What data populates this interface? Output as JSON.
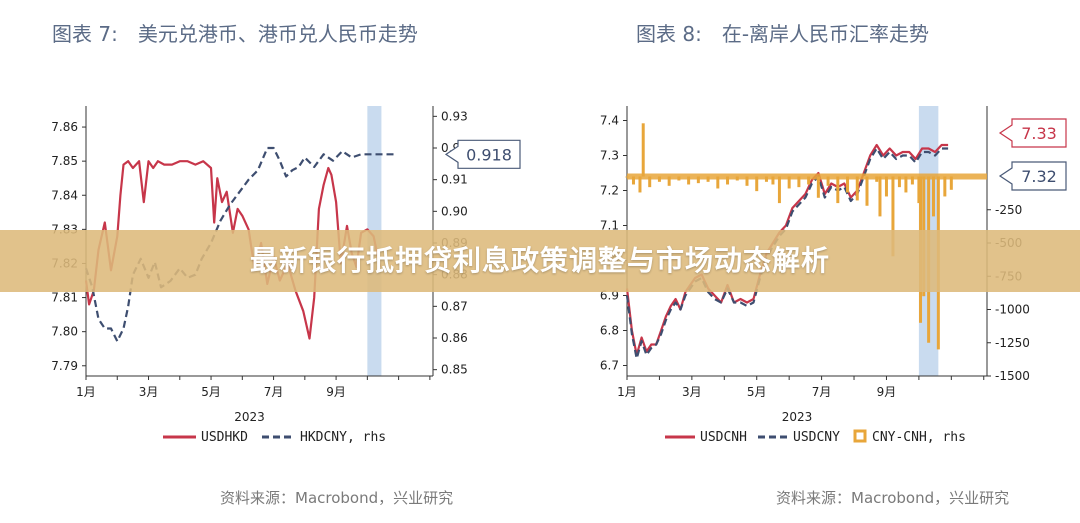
{
  "banner": {
    "text": "最新银行抵押贷利息政策调整与市场动态解析"
  },
  "colors": {
    "red": "#c7364a",
    "navy": "#3e4e70",
    "orange": "#e8a63a",
    "highlight": "#c9dbef"
  },
  "chart_data": [
    {
      "type": "line",
      "title": "图表 7:　美元兑港币、港币兑人民币走势",
      "source": "资料来源：Macrobond，兴业研究",
      "x_axis": {
        "ticks": [
          "1月",
          "3月",
          "5月",
          "7月",
          "9月"
        ],
        "year_label": "2023"
      },
      "y_left": {
        "ticks": [
          "7.79",
          "7.80",
          "7.81",
          "7.82",
          "7.83",
          "7.84",
          "7.85",
          "7.86"
        ],
        "range": [
          7.787,
          7.865
        ]
      },
      "y_right": {
        "ticks": [
          "0.85",
          "0.86",
          "0.87",
          "0.88",
          "0.89",
          "0.90",
          "0.91",
          "0.92",
          "0.93"
        ],
        "range": [
          0.848,
          0.932
        ]
      },
      "x_range": [
        1,
        12.1
      ],
      "highlight_span": [
        10,
        10.45
      ],
      "callouts": [
        {
          "text": "0.918",
          "axis": "right",
          "value": 0.918
        }
      ],
      "legend": [
        "USDHKD",
        "HKDCNY, rhs"
      ],
      "series": [
        {
          "name": "USDHKD",
          "axis": "left",
          "style": "solid",
          "x": [
            1.0,
            1.1,
            1.25,
            1.4,
            1.6,
            1.8,
            2.0,
            2.1,
            2.2,
            2.35,
            2.5,
            2.7,
            2.85,
            3.0,
            3.15,
            3.3,
            3.5,
            3.75,
            4.0,
            4.25,
            4.5,
            4.75,
            5.0,
            5.1,
            5.2,
            5.35,
            5.5,
            5.7,
            5.85,
            6.0,
            6.2,
            6.4,
            6.6,
            6.8,
            7.0,
            7.2,
            7.45,
            7.7,
            7.95,
            8.15,
            8.3,
            8.45,
            8.6,
            8.75,
            8.85,
            9.0,
            9.15,
            9.35,
            9.5,
            9.65,
            9.8,
            10.0,
            10.2,
            10.4
          ],
          "values": [
            7.815,
            7.808,
            7.812,
            7.824,
            7.832,
            7.818,
            7.828,
            7.84,
            7.849,
            7.85,
            7.848,
            7.85,
            7.838,
            7.85,
            7.848,
            7.85,
            7.849,
            7.849,
            7.85,
            7.85,
            7.849,
            7.85,
            7.848,
            7.832,
            7.845,
            7.838,
            7.841,
            7.829,
            7.836,
            7.834,
            7.83,
            7.818,
            7.826,
            7.814,
            7.822,
            7.815,
            7.82,
            7.812,
            7.806,
            7.798,
            7.81,
            7.836,
            7.843,
            7.848,
            7.846,
            7.838,
            7.82,
            7.831,
            7.823,
            7.819,
            7.829,
            7.83,
            7.828,
            7.819
          ]
        },
        {
          "name": "HKDCNY, rhs",
          "axis": "right",
          "style": "dashed",
          "x": [
            1.0,
            1.2,
            1.4,
            1.6,
            1.8,
            2.0,
            2.2,
            2.35,
            2.5,
            2.75,
            3.0,
            3.2,
            3.4,
            3.7,
            4.0,
            4.25,
            4.5,
            4.7,
            5.0,
            5.3,
            5.6,
            5.9,
            6.2,
            6.5,
            6.8,
            7.0,
            7.2,
            7.4,
            7.6,
            7.8,
            8.0,
            8.3,
            8.6,
            8.9,
            9.2,
            9.5,
            9.8,
            10.0,
            10.3,
            10.6,
            10.9
          ],
          "values": [
            0.882,
            0.876,
            0.866,
            0.863,
            0.863,
            0.859,
            0.863,
            0.87,
            0.88,
            0.885,
            0.879,
            0.884,
            0.876,
            0.878,
            0.882,
            0.879,
            0.88,
            0.885,
            0.89,
            0.897,
            0.902,
            0.906,
            0.91,
            0.913,
            0.92,
            0.92,
            0.916,
            0.911,
            0.913,
            0.914,
            0.917,
            0.914,
            0.918,
            0.916,
            0.919,
            0.917,
            0.918,
            0.918,
            0.918,
            0.918,
            0.918
          ]
        }
      ]
    },
    {
      "type": "line",
      "title": "图表 8:　在-离岸人民币汇率走势",
      "source": "资料来源：Macrobond，兴业研究",
      "x_axis": {
        "ticks": [
          "1月",
          "3月",
          "5月",
          "7月",
          "9月"
        ],
        "year_label": "2023"
      },
      "y_left": {
        "ticks": [
          "6.7",
          "6.8",
          "6.9",
          "7.0",
          "7.1",
          "7.2",
          "7.3",
          "7.4"
        ],
        "range": [
          6.67,
          7.43
        ]
      },
      "y_right": {
        "ticks": [
          "-1500",
          "-1250",
          "-1000",
          "-750",
          "-500",
          "-250"
        ],
        "range": [
          -1500,
          500
        ]
      },
      "x_range": [
        1,
        12.1
      ],
      "highlight_span": [
        10,
        10.6
      ],
      "callouts": [
        {
          "text": "7.33",
          "axis": "left",
          "value": 7.33
        },
        {
          "text": "7.32",
          "axis": "left",
          "value": 7.32
        }
      ],
      "legend": [
        "USDCNH",
        "USDCNY",
        "CNY-CNH, rhs"
      ],
      "series": [
        {
          "name": "USDCNH",
          "axis": "left",
          "style": "solid",
          "x": [
            1.0,
            1.15,
            1.3,
            1.45,
            1.6,
            1.75,
            1.9,
            2.05,
            2.2,
            2.35,
            2.5,
            2.65,
            2.8,
            2.95,
            3.1,
            3.3,
            3.5,
            3.7,
            3.9,
            4.1,
            4.3,
            4.5,
            4.7,
            4.9,
            5.1,
            5.3,
            5.5,
            5.7,
            5.9,
            6.1,
            6.3,
            6.5,
            6.7,
            6.9,
            7.1,
            7.3,
            7.5,
            7.7,
            7.9,
            8.1,
            8.3,
            8.5,
            8.7,
            8.9,
            9.1,
            9.3,
            9.5,
            9.7,
            9.9,
            10.1,
            10.3,
            10.5,
            10.7,
            10.9
          ],
          "values": [
            6.92,
            6.8,
            6.73,
            6.78,
            6.74,
            6.76,
            6.76,
            6.8,
            6.84,
            6.87,
            6.89,
            6.86,
            6.91,
            6.93,
            6.95,
            6.96,
            6.92,
            6.9,
            6.88,
            6.93,
            6.88,
            6.89,
            6.88,
            6.89,
            6.96,
            7.02,
            7.05,
            7.08,
            7.1,
            7.15,
            7.17,
            7.19,
            7.23,
            7.25,
            7.19,
            7.22,
            7.21,
            7.22,
            7.18,
            7.2,
            7.25,
            7.3,
            7.33,
            7.3,
            7.32,
            7.3,
            7.31,
            7.31,
            7.29,
            7.32,
            7.32,
            7.31,
            7.33,
            7.33
          ]
        },
        {
          "name": "USDCNY",
          "axis": "left",
          "style": "dashed",
          "x": [
            1.0,
            1.15,
            1.3,
            1.45,
            1.6,
            1.75,
            1.9,
            2.05,
            2.2,
            2.35,
            2.5,
            2.65,
            2.8,
            2.95,
            3.1,
            3.3,
            3.5,
            3.7,
            3.9,
            4.1,
            4.3,
            4.5,
            4.7,
            4.9,
            5.1,
            5.3,
            5.5,
            5.7,
            5.9,
            6.1,
            6.3,
            6.5,
            6.7,
            6.9,
            7.1,
            7.3,
            7.5,
            7.7,
            7.9,
            8.1,
            8.3,
            8.5,
            8.7,
            8.9,
            9.1,
            9.3,
            9.5,
            9.7,
            9.9,
            10.1,
            10.3,
            10.5,
            10.7,
            10.9
          ],
          "values": [
            6.9,
            6.79,
            6.72,
            6.77,
            6.73,
            6.75,
            6.76,
            6.79,
            6.83,
            6.86,
            6.88,
            6.86,
            6.9,
            6.92,
            6.94,
            6.95,
            6.91,
            6.89,
            6.88,
            6.92,
            6.88,
            6.88,
            6.87,
            6.88,
            6.95,
            7.01,
            7.04,
            7.07,
            7.09,
            7.14,
            7.16,
            7.18,
            7.22,
            7.24,
            7.18,
            7.21,
            7.2,
            7.21,
            7.17,
            7.19,
            7.24,
            7.29,
            7.32,
            7.29,
            7.31,
            7.29,
            7.3,
            7.3,
            7.28,
            7.31,
            7.31,
            7.3,
            7.32,
            7.32
          ]
        },
        {
          "name": "CNY-CNH, rhs",
          "axis": "right",
          "style": "bars",
          "x": [
            1.0,
            1.2,
            1.4,
            1.5,
            1.7,
            2.0,
            2.3,
            2.6,
            2.9,
            3.2,
            3.5,
            3.8,
            4.1,
            4.4,
            4.7,
            5.0,
            5.3,
            5.5,
            5.7,
            6.0,
            6.3,
            6.6,
            6.9,
            7.2,
            7.5,
            7.8,
            8.1,
            8.4,
            8.7,
            8.8,
            9.0,
            9.2,
            9.4,
            9.6,
            9.8,
            10.0,
            10.05,
            10.15,
            10.3,
            10.45,
            10.6,
            10.8,
            11.0
          ],
          "values": [
            0,
            -60,
            -120,
            400,
            -80,
            -40,
            -70,
            -30,
            -60,
            -50,
            -40,
            -90,
            -60,
            -30,
            -70,
            -110,
            -40,
            -60,
            -200,
            -90,
            -80,
            -60,
            -160,
            -70,
            -200,
            -120,
            -180,
            -220,
            -40,
            -300,
            -150,
            -600,
            -80,
            -120,
            -60,
            -200,
            -1100,
            -900,
            -1250,
            -300,
            -1300,
            -150,
            -100
          ]
        }
      ]
    }
  ]
}
